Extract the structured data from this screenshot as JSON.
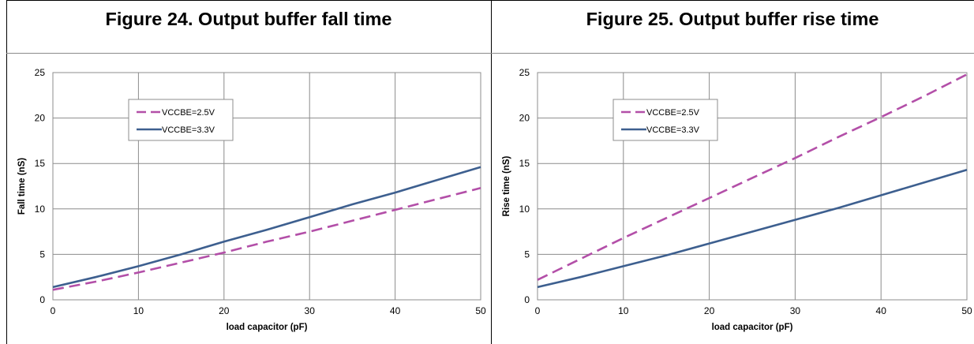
{
  "figures": [
    {
      "title": "Figure 24. Output buffer fall time",
      "chart_data": {
        "type": "line",
        "xlabel": "load capacitor (pF)",
        "ylabel": "Fall time (nS)",
        "xlim": [
          0,
          50
        ],
        "ylim": [
          0,
          25
        ],
        "xticks": [
          "0",
          "10",
          "20",
          "30",
          "40",
          "50"
        ],
        "yticks": [
          "0",
          "5",
          "10",
          "15",
          "20",
          "25"
        ],
        "grid": true,
        "legend_position": "top-left",
        "series": [
          {
            "name": "VCCBE=2.5V",
            "color": "#b34fa8",
            "style": "dashed",
            "x": [
              0,
              5,
              10,
              15,
              20,
              25,
              30,
              35,
              40,
              45,
              50
            ],
            "y": [
              1.1,
              2.0,
              3.0,
              4.1,
              5.2,
              6.4,
              7.5,
              8.7,
              9.9,
              11.1,
              12.3
            ]
          },
          {
            "name": "VCCBE=3.3V",
            "color": "#3d5f8f",
            "style": "solid",
            "x": [
              0,
              5,
              10,
              15,
              20,
              25,
              30,
              35,
              40,
              45,
              50
            ],
            "y": [
              1.4,
              2.5,
              3.7,
              5.0,
              6.4,
              7.7,
              9.1,
              10.5,
              11.8,
              13.2,
              14.6
            ]
          }
        ]
      }
    },
    {
      "title": "Figure 25. Output buffer rise time",
      "chart_data": {
        "type": "line",
        "xlabel": "load capacitor (pF)",
        "ylabel": "Rise  time (nS)",
        "xlim": [
          0,
          50
        ],
        "ylim": [
          0,
          25
        ],
        "xticks": [
          "0",
          "10",
          "20",
          "30",
          "40",
          "50"
        ],
        "yticks": [
          "0",
          "5",
          "10",
          "15",
          "20",
          "25"
        ],
        "grid": true,
        "legend_position": "top-left",
        "series": [
          {
            "name": "VCCBE=2.5V",
            "color": "#b34fa8",
            "style": "dashed",
            "x": [
              0,
              5,
              10,
              15,
              20,
              25,
              30,
              35,
              40,
              45,
              50
            ],
            "y": [
              2.2,
              4.5,
              6.8,
              9.0,
              11.2,
              13.4,
              15.6,
              17.9,
              20.1,
              22.4,
              24.8
            ]
          },
          {
            "name": "VCCBE=3.3V",
            "color": "#3d5f8f",
            "style": "solid",
            "x": [
              0,
              5,
              10,
              15,
              20,
              25,
              30,
              35,
              40,
              45,
              50
            ],
            "y": [
              1.4,
              2.5,
              3.7,
              4.9,
              6.2,
              7.5,
              8.8,
              10.1,
              11.5,
              12.9,
              14.3
            ]
          }
        ]
      }
    }
  ]
}
